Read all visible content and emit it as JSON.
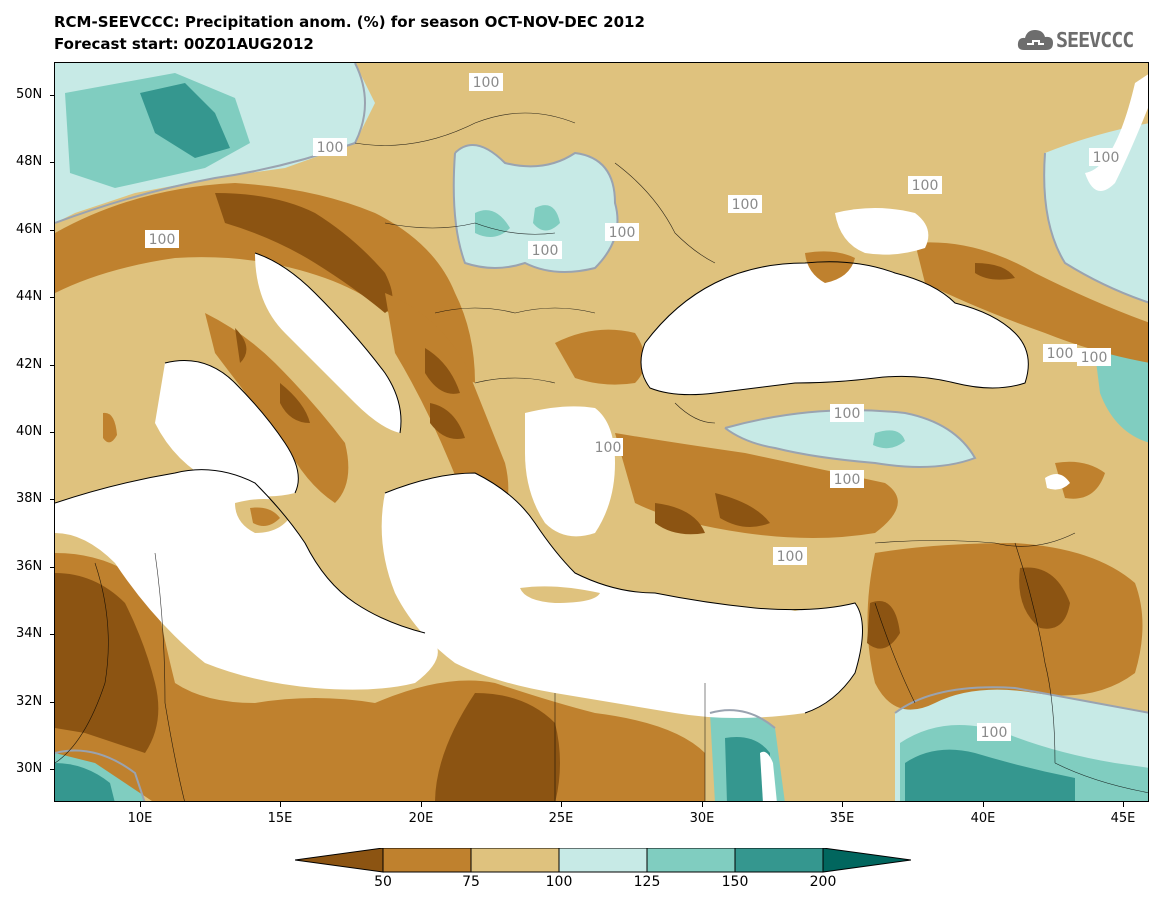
{
  "title_line1": "RCM-SEEVCCC: Precipitation anom. (%) for season OCT-NOV-DEC 2012",
  "title_line2": "Forecast start: 00Z01AUG2012",
  "logo_text": "SEEVCCC",
  "map": {
    "lon_range": [
      7,
      46
    ],
    "lat_range": [
      29,
      51
    ],
    "contour_label": "100",
    "colors": {
      "below_50": "#8c5412",
      "50_75": "#bf812e",
      "75_100": "#dfc27e",
      "100_125": "#c7eae6",
      "125_150": "#80cdc0",
      "150_200": "#35978f",
      "above_200": "#01665e",
      "sea": "#ffffff",
      "contour": "#9aa3b0"
    }
  },
  "y_axis": {
    "labels": [
      "50N",
      "48N",
      "46N",
      "44N",
      "42N",
      "40N",
      "38N",
      "36N",
      "34N",
      "32N",
      "30N"
    ]
  },
  "x_axis": {
    "labels": [
      "10E",
      "15E",
      "20E",
      "25E",
      "30E",
      "35E",
      "40E",
      "45E"
    ]
  },
  "colorbar": {
    "tick_labels": [
      "50",
      "75",
      "100",
      "125",
      "150",
      "200"
    ],
    "colors": [
      "#8c5412",
      "#bf812e",
      "#dfc27e",
      "#c7eae6",
      "#80cdc0",
      "#35978f",
      "#01665e"
    ]
  }
}
